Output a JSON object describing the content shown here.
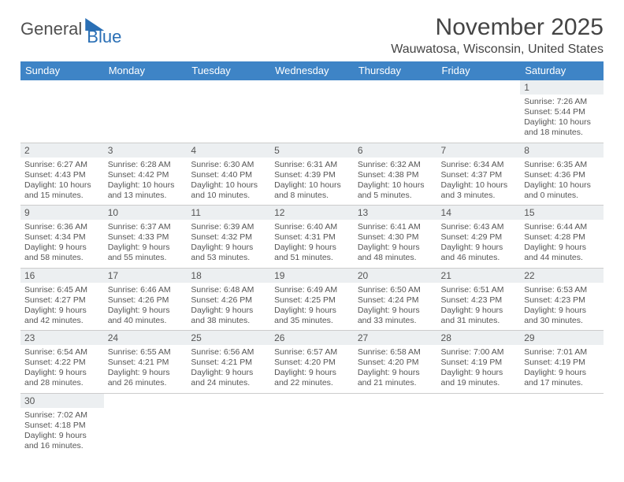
{
  "brand": {
    "part1": "General",
    "part2": "Blue"
  },
  "title": "November 2025",
  "location": "Wauwatosa, Wisconsin, United States",
  "colors": {
    "header_bg": "#3e84c6",
    "header_text": "#ffffff",
    "daynum_bg": "#eceff1",
    "border": "#3e84c6",
    "text": "#555555",
    "brand_accent": "#2a6fb5"
  },
  "typography": {
    "title_fontsize": 30,
    "location_fontsize": 16,
    "header_fontsize": 13,
    "daynum_fontsize": 12,
    "body_fontsize": 10.5
  },
  "day_labels": [
    "Sunday",
    "Monday",
    "Tuesday",
    "Wednesday",
    "Thursday",
    "Friday",
    "Saturday"
  ],
  "weeks": [
    [
      {
        "empty": true
      },
      {
        "empty": true
      },
      {
        "empty": true
      },
      {
        "empty": true
      },
      {
        "empty": true
      },
      {
        "empty": true
      },
      {
        "num": "1",
        "sunrise": "Sunrise: 7:26 AM",
        "sunset": "Sunset: 5:44 PM",
        "daylight1": "Daylight: 10 hours",
        "daylight2": "and 18 minutes."
      }
    ],
    [
      {
        "num": "2",
        "sunrise": "Sunrise: 6:27 AM",
        "sunset": "Sunset: 4:43 PM",
        "daylight1": "Daylight: 10 hours",
        "daylight2": "and 15 minutes."
      },
      {
        "num": "3",
        "sunrise": "Sunrise: 6:28 AM",
        "sunset": "Sunset: 4:42 PM",
        "daylight1": "Daylight: 10 hours",
        "daylight2": "and 13 minutes."
      },
      {
        "num": "4",
        "sunrise": "Sunrise: 6:30 AM",
        "sunset": "Sunset: 4:40 PM",
        "daylight1": "Daylight: 10 hours",
        "daylight2": "and 10 minutes."
      },
      {
        "num": "5",
        "sunrise": "Sunrise: 6:31 AM",
        "sunset": "Sunset: 4:39 PM",
        "daylight1": "Daylight: 10 hours",
        "daylight2": "and 8 minutes."
      },
      {
        "num": "6",
        "sunrise": "Sunrise: 6:32 AM",
        "sunset": "Sunset: 4:38 PM",
        "daylight1": "Daylight: 10 hours",
        "daylight2": "and 5 minutes."
      },
      {
        "num": "7",
        "sunrise": "Sunrise: 6:34 AM",
        "sunset": "Sunset: 4:37 PM",
        "daylight1": "Daylight: 10 hours",
        "daylight2": "and 3 minutes."
      },
      {
        "num": "8",
        "sunrise": "Sunrise: 6:35 AM",
        "sunset": "Sunset: 4:36 PM",
        "daylight1": "Daylight: 10 hours",
        "daylight2": "and 0 minutes."
      }
    ],
    [
      {
        "num": "9",
        "sunrise": "Sunrise: 6:36 AM",
        "sunset": "Sunset: 4:34 PM",
        "daylight1": "Daylight: 9 hours",
        "daylight2": "and 58 minutes."
      },
      {
        "num": "10",
        "sunrise": "Sunrise: 6:37 AM",
        "sunset": "Sunset: 4:33 PM",
        "daylight1": "Daylight: 9 hours",
        "daylight2": "and 55 minutes."
      },
      {
        "num": "11",
        "sunrise": "Sunrise: 6:39 AM",
        "sunset": "Sunset: 4:32 PM",
        "daylight1": "Daylight: 9 hours",
        "daylight2": "and 53 minutes."
      },
      {
        "num": "12",
        "sunrise": "Sunrise: 6:40 AM",
        "sunset": "Sunset: 4:31 PM",
        "daylight1": "Daylight: 9 hours",
        "daylight2": "and 51 minutes."
      },
      {
        "num": "13",
        "sunrise": "Sunrise: 6:41 AM",
        "sunset": "Sunset: 4:30 PM",
        "daylight1": "Daylight: 9 hours",
        "daylight2": "and 48 minutes."
      },
      {
        "num": "14",
        "sunrise": "Sunrise: 6:43 AM",
        "sunset": "Sunset: 4:29 PM",
        "daylight1": "Daylight: 9 hours",
        "daylight2": "and 46 minutes."
      },
      {
        "num": "15",
        "sunrise": "Sunrise: 6:44 AM",
        "sunset": "Sunset: 4:28 PM",
        "daylight1": "Daylight: 9 hours",
        "daylight2": "and 44 minutes."
      }
    ],
    [
      {
        "num": "16",
        "sunrise": "Sunrise: 6:45 AM",
        "sunset": "Sunset: 4:27 PM",
        "daylight1": "Daylight: 9 hours",
        "daylight2": "and 42 minutes."
      },
      {
        "num": "17",
        "sunrise": "Sunrise: 6:46 AM",
        "sunset": "Sunset: 4:26 PM",
        "daylight1": "Daylight: 9 hours",
        "daylight2": "and 40 minutes."
      },
      {
        "num": "18",
        "sunrise": "Sunrise: 6:48 AM",
        "sunset": "Sunset: 4:26 PM",
        "daylight1": "Daylight: 9 hours",
        "daylight2": "and 38 minutes."
      },
      {
        "num": "19",
        "sunrise": "Sunrise: 6:49 AM",
        "sunset": "Sunset: 4:25 PM",
        "daylight1": "Daylight: 9 hours",
        "daylight2": "and 35 minutes."
      },
      {
        "num": "20",
        "sunrise": "Sunrise: 6:50 AM",
        "sunset": "Sunset: 4:24 PM",
        "daylight1": "Daylight: 9 hours",
        "daylight2": "and 33 minutes."
      },
      {
        "num": "21",
        "sunrise": "Sunrise: 6:51 AM",
        "sunset": "Sunset: 4:23 PM",
        "daylight1": "Daylight: 9 hours",
        "daylight2": "and 31 minutes."
      },
      {
        "num": "22",
        "sunrise": "Sunrise: 6:53 AM",
        "sunset": "Sunset: 4:23 PM",
        "daylight1": "Daylight: 9 hours",
        "daylight2": "and 30 minutes."
      }
    ],
    [
      {
        "num": "23",
        "sunrise": "Sunrise: 6:54 AM",
        "sunset": "Sunset: 4:22 PM",
        "daylight1": "Daylight: 9 hours",
        "daylight2": "and 28 minutes."
      },
      {
        "num": "24",
        "sunrise": "Sunrise: 6:55 AM",
        "sunset": "Sunset: 4:21 PM",
        "daylight1": "Daylight: 9 hours",
        "daylight2": "and 26 minutes."
      },
      {
        "num": "25",
        "sunrise": "Sunrise: 6:56 AM",
        "sunset": "Sunset: 4:21 PM",
        "daylight1": "Daylight: 9 hours",
        "daylight2": "and 24 minutes."
      },
      {
        "num": "26",
        "sunrise": "Sunrise: 6:57 AM",
        "sunset": "Sunset: 4:20 PM",
        "daylight1": "Daylight: 9 hours",
        "daylight2": "and 22 minutes."
      },
      {
        "num": "27",
        "sunrise": "Sunrise: 6:58 AM",
        "sunset": "Sunset: 4:20 PM",
        "daylight1": "Daylight: 9 hours",
        "daylight2": "and 21 minutes."
      },
      {
        "num": "28",
        "sunrise": "Sunrise: 7:00 AM",
        "sunset": "Sunset: 4:19 PM",
        "daylight1": "Daylight: 9 hours",
        "daylight2": "and 19 minutes."
      },
      {
        "num": "29",
        "sunrise": "Sunrise: 7:01 AM",
        "sunset": "Sunset: 4:19 PM",
        "daylight1": "Daylight: 9 hours",
        "daylight2": "and 17 minutes."
      }
    ],
    [
      {
        "num": "30",
        "sunrise": "Sunrise: 7:02 AM",
        "sunset": "Sunset: 4:18 PM",
        "daylight1": "Daylight: 9 hours",
        "daylight2": "and 16 minutes."
      },
      {
        "empty": true
      },
      {
        "empty": true
      },
      {
        "empty": true
      },
      {
        "empty": true
      },
      {
        "empty": true
      },
      {
        "empty": true
      }
    ]
  ]
}
